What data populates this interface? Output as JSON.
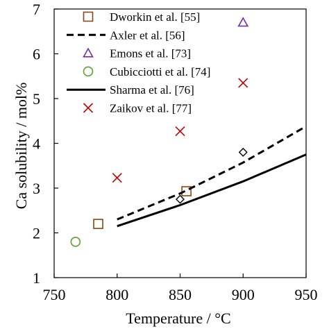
{
  "chart_data": {
    "type": "scatter",
    "title": "",
    "xlabel": "Temperature / °C",
    "ylabel": "Ca solubility / mol%",
    "xlim": [
      750,
      950
    ],
    "ylim": [
      1,
      7
    ],
    "xticks": [
      750,
      800,
      850,
      900,
      950
    ],
    "yticks": [
      1,
      2,
      3,
      4,
      5,
      6,
      7
    ],
    "grid": false,
    "legend_position": "top-right",
    "series": [
      {
        "name": "Dworkin et al. [55]",
        "kind": "marker",
        "marker": "square",
        "color": "#8b4513",
        "points": [
          [
            785,
            2.2
          ],
          [
            855,
            2.93
          ]
        ]
      },
      {
        "name": "Axler et al. [56]",
        "kind": "line",
        "dash": "dashed",
        "color": "#000000",
        "points": [
          [
            800,
            2.3
          ],
          [
            850,
            2.88
          ],
          [
            900,
            3.57
          ],
          [
            950,
            4.38
          ]
        ]
      },
      {
        "name": "Emons et al. [73]",
        "kind": "marker",
        "marker": "triangle",
        "color": "#7030a0",
        "points": [
          [
            900,
            6.7
          ]
        ]
      },
      {
        "name": "Cubicciotti et al. [74]",
        "kind": "marker",
        "marker": "circle",
        "color": "#5aa02c",
        "points": [
          [
            767,
            1.8
          ]
        ]
      },
      {
        "name": "Sharma et al. [76]",
        "kind": "line",
        "dash": "solid",
        "color": "#000000",
        "points": [
          [
            800,
            2.15
          ],
          [
            850,
            2.62
          ],
          [
            900,
            3.15
          ],
          [
            950,
            3.75
          ]
        ]
      },
      {
        "name": "Zaikov et al. [77]",
        "kind": "marker",
        "marker": "cross",
        "color": "#c00000",
        "points": [
          [
            800,
            3.23
          ],
          [
            850,
            4.27
          ],
          [
            900,
            5.35
          ]
        ]
      },
      {
        "name": "",
        "kind": "marker",
        "marker": "diamond",
        "color": "#000000",
        "points": [
          [
            850,
            2.75
          ],
          [
            900,
            3.8
          ]
        ]
      }
    ]
  }
}
